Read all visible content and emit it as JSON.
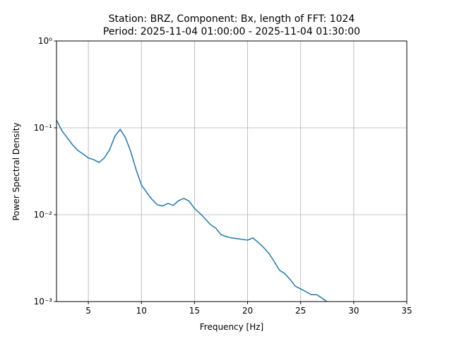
{
  "chart_data": {
    "type": "line",
    "title": "Station: BRZ, Component: Bx, length of FFT: 1024",
    "subtitle": "Period: 2025-11-04 01:00:00 - 2025-11-04 01:30:00",
    "xlabel": "Frequency [Hz]",
    "ylabel": "Power Spectral Density",
    "x": [
      2,
      2.5,
      3,
      3.5,
      4,
      4.5,
      5,
      5.5,
      6,
      6.5,
      7,
      7.5,
      8,
      8.5,
      9,
      9.5,
      10,
      10.5,
      11,
      11.5,
      12,
      12.5,
      13,
      13.5,
      14,
      14.5,
      15,
      15.5,
      16,
      16.5,
      17,
      17.5,
      18,
      18.5,
      19,
      19.5,
      20,
      20.5,
      21,
      21.5,
      22,
      22.5,
      23,
      23.5,
      24,
      24.5,
      25,
      25.5,
      26,
      26.5,
      27,
      27.5
    ],
    "series": [
      {
        "name": "Bx",
        "color": "#1f77b4",
        "values": [
          0.123,
          0.093,
          0.077,
          0.064,
          0.055,
          0.05,
          0.045,
          0.043,
          0.04,
          0.045,
          0.056,
          0.08,
          0.096,
          0.077,
          0.053,
          0.033,
          0.022,
          0.018,
          0.015,
          0.013,
          0.0126,
          0.0135,
          0.0128,
          0.0145,
          0.0154,
          0.0143,
          0.0118,
          0.0104,
          0.009,
          0.0077,
          0.007,
          0.0059,
          0.0056,
          0.0054,
          0.0053,
          0.0052,
          0.0051,
          0.0054,
          0.0048,
          0.0042,
          0.0036,
          0.0029,
          0.0023,
          0.0021,
          0.0018,
          0.0015,
          0.0014,
          0.0013,
          0.0012,
          0.0012,
          0.0011,
          0.00099
        ]
      }
    ],
    "xlim": [
      2,
      35
    ],
    "xticks": [
      5,
      10,
      15,
      20,
      25,
      30,
      35
    ],
    "ylim": [
      0.001,
      1
    ],
    "yscale": "log",
    "yticks": [
      {
        "value": 0.001,
        "label": "10⁻³"
      },
      {
        "value": 0.01,
        "label": "10⁻²"
      },
      {
        "value": 0.1,
        "label": "10⁻¹"
      },
      {
        "value": 1,
        "label": "10⁰"
      }
    ],
    "grid": true
  }
}
